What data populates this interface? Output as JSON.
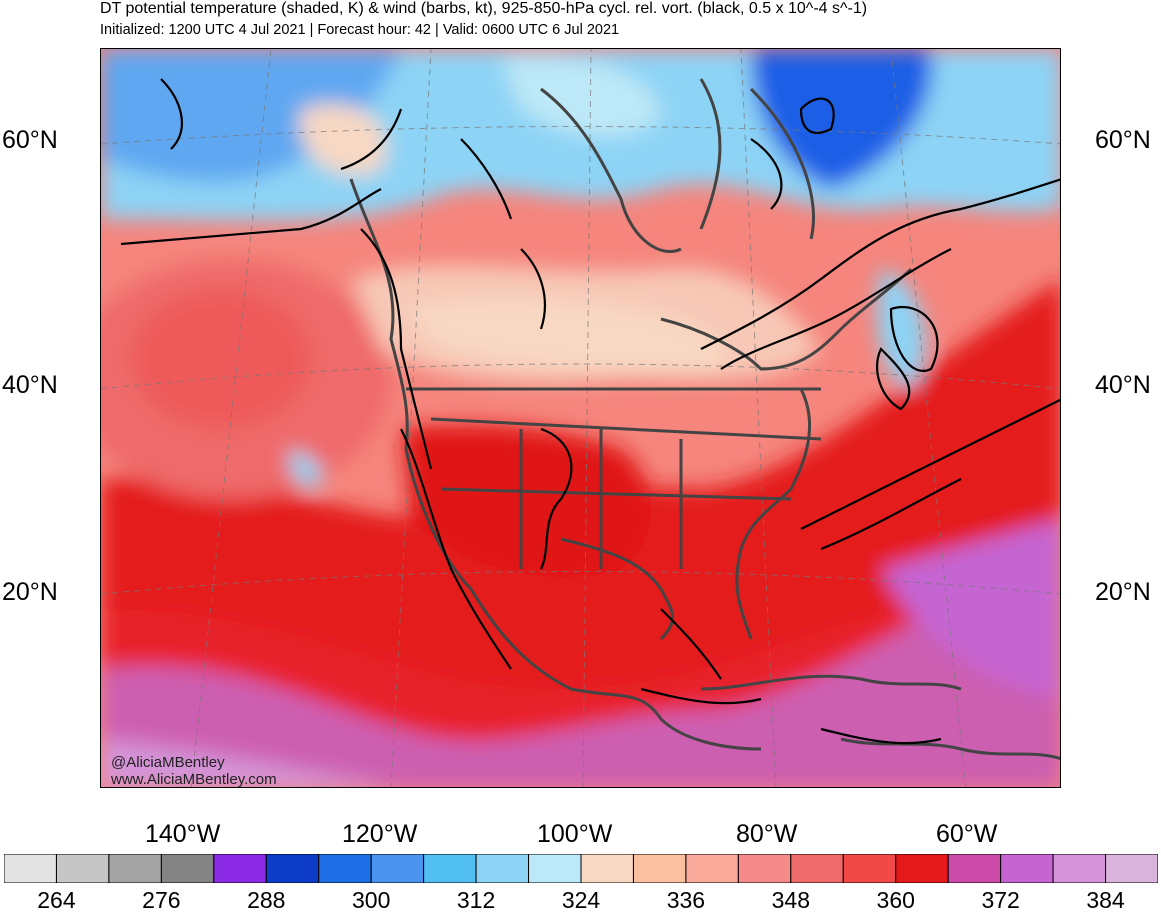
{
  "title": "DT potential temperature (shaded, K) & wind (barbs, kt), 925-850-hPa cycl. rel. vort. (black, 0.5 x 10^-4 s^-1)",
  "subtitle": "Initialized: 1200 UTC 4 Jul 2021 | Forecast hour: 42 | Valid: 0600 UTC 6 Jul 2021",
  "lat_labels": [
    "60°N",
    "40°N",
    "20°N"
  ],
  "lon_labels": [
    "140°W",
    "120°W",
    "100°W",
    "80°W",
    "60°W"
  ],
  "credit": {
    "handle": "@AliciaMBentley",
    "url": "www.AliciaMBentley.com"
  },
  "colorbar": {
    "colors": [
      "#e3e3e3",
      "#c6c6c6",
      "#a4a4a4",
      "#838383",
      "#8c2be6",
      "#0d3cc8",
      "#1e6ee6",
      "#4a94f0",
      "#52bff2",
      "#8dd3f5",
      "#bde8f7",
      "#f8d8c2",
      "#fbc09f",
      "#f9a99a",
      "#f48a8a",
      "#ef6a6a",
      "#f14848",
      "#e41a1a",
      "#cc4aa8",
      "#c565d2",
      "#d793d9",
      "#d9b3db"
    ],
    "labels": [
      "264",
      "276",
      "288",
      "300",
      "312",
      "324",
      "336",
      "348",
      "360",
      "372",
      "384"
    ]
  },
  "map": {
    "palette": {
      "ocean_warm": "#e8242a",
      "ocean_hot": "#d9252a",
      "mid": "#f5857d",
      "pale": "#f7c8b6",
      "cold": "#8dd3f5",
      "cold2": "#4a94f0",
      "coldest": "#1e5ee6",
      "tropic": "#c86ac9",
      "tropic2": "#d494d8",
      "land_line": "#444444"
    }
  }
}
